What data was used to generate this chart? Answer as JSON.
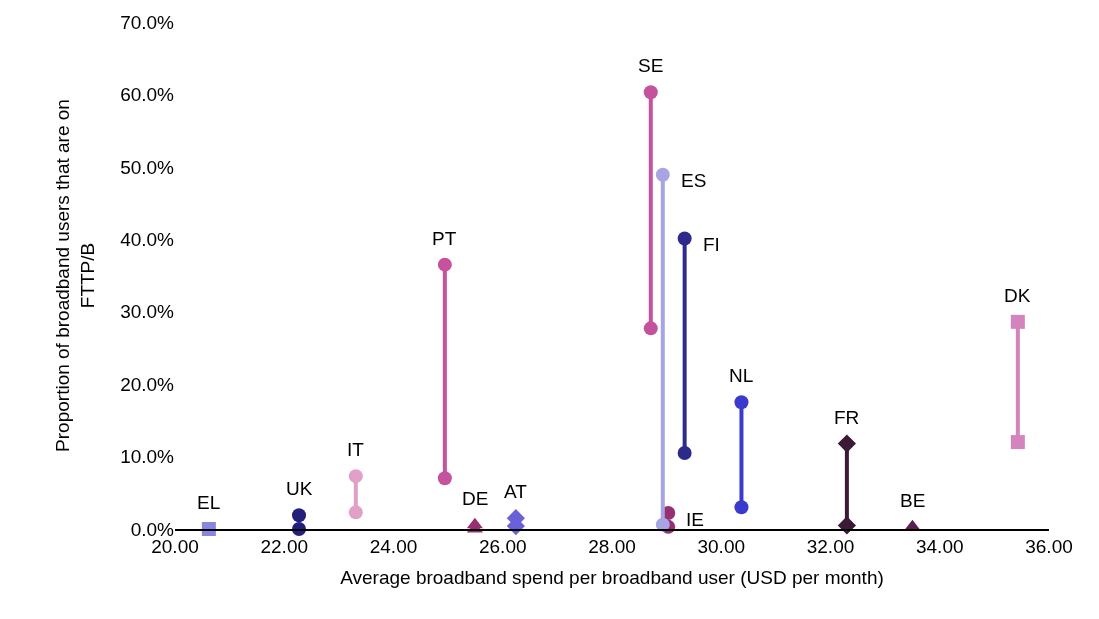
{
  "chart_data": {
    "type": "line",
    "xlabel": "Average broadband spend per broadband user (USD per month)",
    "ylabel": "Proportion of broadband users that are on FTTP/B",
    "xlim": [
      20,
      36
    ],
    "xticks": [
      {
        "value": 20,
        "label": "20.00"
      },
      {
        "value": 22,
        "label": "22.00"
      },
      {
        "value": 24,
        "label": "24.00"
      },
      {
        "value": 26,
        "label": "26.00"
      },
      {
        "value": 28,
        "label": "28.00"
      },
      {
        "value": 30,
        "label": "30.00"
      },
      {
        "value": 32,
        "label": "32.00"
      },
      {
        "value": 34,
        "label": "34.00"
      },
      {
        "value": 36,
        "label": "36.00"
      }
    ],
    "ylim": [
      0,
      70
    ],
    "yticks": [
      {
        "value": 0,
        "label": "0.0%"
      },
      {
        "value": 10,
        "label": "10.0%"
      },
      {
        "value": 20,
        "label": "20.0%"
      },
      {
        "value": 30,
        "label": "30.0%"
      },
      {
        "value": 40,
        "label": "40.0%"
      },
      {
        "value": 50,
        "label": "50.0%"
      },
      {
        "value": 60,
        "label": "60.0%"
      },
      {
        "value": 70,
        "label": "70.0%"
      }
    ],
    "grid": false,
    "legend": false,
    "line_style": "solid",
    "series": [
      {
        "name": "EL",
        "type": "scatter",
        "color": "#8a85e0",
        "marker": "square",
        "x": [
          20.62
        ],
        "values": [
          0
        ]
      },
      {
        "name": "UK",
        "type": "scatter",
        "color": "#231f7a",
        "marker": "circle",
        "x": [
          22.27,
          22.27
        ],
        "values": [
          1.9,
          0
        ]
      },
      {
        "name": "IT",
        "color": "#e0a0c8",
        "marker": "circle",
        "x": [
          23.31,
          23.31
        ],
        "values": [
          7.3,
          2.3
        ]
      },
      {
        "name": "PT",
        "color": "#c4529c",
        "marker": "circle",
        "x": [
          24.94,
          24.94
        ],
        "values": [
          36.5,
          7.0
        ]
      },
      {
        "name": "DE",
        "type": "scatter",
        "color": "#963070",
        "marker": "triangle",
        "x": [
          25.49,
          25.49
        ],
        "values": [
          0.6,
          0
        ]
      },
      {
        "name": "AT",
        "type": "scatter",
        "color": "#6a60d8",
        "marker": "diamond",
        "x": [
          26.24,
          26.24
        ],
        "values": [
          1.5,
          0.4
        ]
      },
      {
        "name": "SE",
        "color": "#c4529c",
        "marker": "circle",
        "x": [
          28.71,
          28.71
        ],
        "values": [
          60.3,
          27.7
        ]
      },
      {
        "name": "IE",
        "type": "scatter",
        "color": "#963070",
        "marker": "circle",
        "x": [
          29.03,
          29.03
        ],
        "values": [
          2.2,
          0.3
        ]
      },
      {
        "name": "ES",
        "color": "#a8a4e4",
        "marker": "circle",
        "x": [
          28.93,
          28.93
        ],
        "values": [
          48.9,
          0.6
        ]
      },
      {
        "name": "FI",
        "color": "#2e2a8c",
        "marker": "circle",
        "x": [
          29.33,
          29.33
        ],
        "values": [
          40.1,
          10.5
        ]
      },
      {
        "name": "NL",
        "color": "#3a3acc",
        "marker": "circle",
        "x": [
          30.37,
          30.37
        ],
        "values": [
          17.5,
          3.0
        ]
      },
      {
        "name": "FR",
        "color": "#3a1a35",
        "marker": "diamond",
        "x": [
          32.3,
          32.3
        ],
        "values": [
          11.8,
          0.5
        ]
      },
      {
        "name": "BE",
        "type": "scatter",
        "color": "#5a2050",
        "marker": "triangle",
        "x": [
          33.5
        ],
        "values": [
          0.3
        ]
      },
      {
        "name": "DK",
        "color": "#d484bc",
        "marker": "square",
        "x": [
          35.43,
          35.43
        ],
        "values": [
          28.6,
          12.0
        ]
      }
    ]
  }
}
